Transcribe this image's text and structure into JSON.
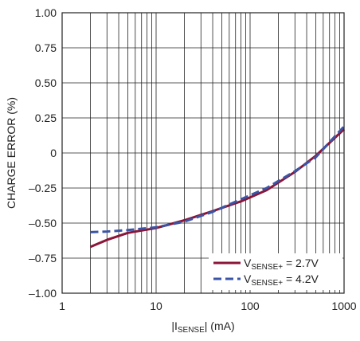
{
  "chart_data": {
    "type": "line",
    "x_scale": "log",
    "x_range": [
      1,
      1000
    ],
    "y_range": [
      -1.0,
      1.0
    ],
    "grid": true,
    "xlabel": {
      "pre": "|I",
      "sub": "SENSE",
      "post": "| (mA)"
    },
    "ylabel": "CHARGE ERROR (%)",
    "x_ticks": [
      {
        "value": 1,
        "label": "1"
      },
      {
        "value": 10,
        "label": "10"
      },
      {
        "value": 100,
        "label": "100"
      },
      {
        "value": 1000,
        "label": "1000"
      }
    ],
    "y_ticks": [
      {
        "value": 1.0,
        "label": "1.00"
      },
      {
        "value": 0.75,
        "label": "0.75"
      },
      {
        "value": 0.5,
        "label": "0.50"
      },
      {
        "value": 0.25,
        "label": "0.25"
      },
      {
        "value": 0,
        "label": "0"
      },
      {
        "value": -0.25,
        "label": "–0.25"
      },
      {
        "value": -0.5,
        "label": "–0.50"
      },
      {
        "value": -0.75,
        "label": "–0.75"
      },
      {
        "value": -1.0,
        "label": "–1.00"
      }
    ],
    "legend_position": "bottom-right",
    "series": [
      {
        "legend_pre": "V",
        "legend_sub": "SENSE+",
        "legend_post": " = 2.7V",
        "color": "#8a1538",
        "dash": "solid",
        "points": [
          [
            2,
            -0.67
          ],
          [
            3,
            -0.62
          ],
          [
            5,
            -0.57
          ],
          [
            10,
            -0.535
          ],
          [
            20,
            -0.48
          ],
          [
            40,
            -0.415
          ],
          [
            80,
            -0.345
          ],
          [
            150,
            -0.265
          ],
          [
            300,
            -0.135
          ],
          [
            500,
            -0.02
          ],
          [
            1000,
            0.17
          ]
        ]
      },
      {
        "legend_pre": "V",
        "legend_sub": "SENSE+",
        "legend_post": " = 4.2V",
        "color": "#3a55a5",
        "dash": "dashed",
        "points": [
          [
            2,
            -0.565
          ],
          [
            3,
            -0.56
          ],
          [
            5,
            -0.55
          ],
          [
            10,
            -0.53
          ],
          [
            20,
            -0.49
          ],
          [
            40,
            -0.42
          ],
          [
            80,
            -0.33
          ],
          [
            150,
            -0.25
          ],
          [
            300,
            -0.13
          ],
          [
            500,
            -0.03
          ],
          [
            1000,
            0.19
          ]
        ]
      }
    ]
  }
}
